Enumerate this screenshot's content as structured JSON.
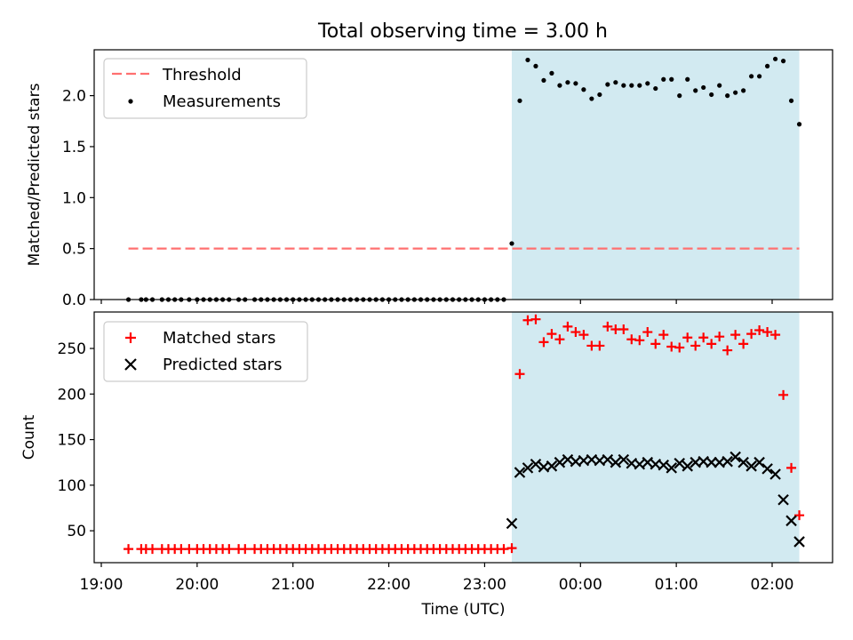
{
  "title": "Total observing time = 3.00 h",
  "chart_data": [
    {
      "type": "scatter",
      "panel": "top",
      "ylabel": "Matched/Predicted stars",
      "ylim": [
        0,
        2.45
      ],
      "yticks": [
        "0.0",
        "0.5",
        "1.0",
        "1.5",
        "2.0"
      ],
      "legend_position": "top-left",
      "threshold": {
        "name": "Threshold",
        "value": 0.5,
        "color": "#ff7070"
      },
      "shaded_interval": {
        "start": "23:17",
        "end": "02:17",
        "color": "#add8e6"
      },
      "series": [
        {
          "name": "Measurements",
          "color": "#000000",
          "x": [
            "19:17",
            "19:25",
            "19:28",
            "19:32",
            "19:38",
            "19:42",
            "19:46",
            "19:50",
            "19:55",
            "20:00",
            "20:04",
            "20:08",
            "20:12",
            "20:16",
            "20:20",
            "20:26",
            "20:30",
            "20:36",
            "20:40",
            "20:44",
            "20:48",
            "20:52",
            "20:56",
            "21:00",
            "21:04",
            "21:08",
            "21:12",
            "21:16",
            "21:20",
            "21:24",
            "21:28",
            "21:32",
            "21:36",
            "21:40",
            "21:44",
            "21:48",
            "21:52",
            "21:56",
            "22:00",
            "22:04",
            "22:08",
            "22:12",
            "22:16",
            "22:20",
            "22:24",
            "22:28",
            "22:32",
            "22:36",
            "22:40",
            "22:44",
            "22:48",
            "22:52",
            "22:56",
            "23:00",
            "23:04",
            "23:08",
            "23:12",
            "23:17",
            "23:22",
            "23:27",
            "23:32",
            "23:37",
            "23:42",
            "23:47",
            "23:52",
            "23:57",
            "00:02",
            "00:07",
            "00:12",
            "00:17",
            "00:22",
            "00:27",
            "00:32",
            "00:37",
            "00:42",
            "00:47",
            "00:52",
            "00:57",
            "01:02",
            "01:07",
            "01:12",
            "01:17",
            "01:22",
            "01:27",
            "01:32",
            "01:37",
            "01:42",
            "01:47",
            "01:52",
            "01:57",
            "02:02",
            "02:07",
            "02:12",
            "02:17"
          ],
          "y": [
            0,
            0,
            0,
            0,
            0,
            0,
            0,
            0,
            0,
            0,
            0,
            0,
            0,
            0,
            0,
            0,
            0,
            0,
            0,
            0,
            0,
            0,
            0,
            0,
            0,
            0,
            0,
            0,
            0,
            0,
            0,
            0,
            0,
            0,
            0,
            0,
            0,
            0,
            0,
            0,
            0,
            0,
            0,
            0,
            0,
            0,
            0,
            0,
            0,
            0,
            0,
            0,
            0,
            0,
            0,
            0,
            0,
            0.55,
            1.95,
            2.35,
            2.29,
            2.15,
            2.22,
            2.1,
            2.13,
            2.12,
            2.06,
            1.97,
            2.01,
            2.11,
            2.13,
            2.1,
            2.1,
            2.1,
            2.12,
            2.07,
            2.16,
            2.16,
            2.0,
            2.16,
            2.05,
            2.08,
            2.01,
            2.1,
            2.0,
            2.03,
            2.05,
            2.19,
            2.19,
            2.29,
            2.36,
            2.34,
            1.95,
            1.72
          ]
        }
      ]
    },
    {
      "type": "scatter",
      "panel": "bottom",
      "xlabel": "Time (UTC)",
      "ylabel": "Count",
      "ylim": [
        15,
        290
      ],
      "yticks": [
        "50",
        "100",
        "150",
        "200",
        "250"
      ],
      "xticks": [
        "19:00",
        "20:00",
        "21:00",
        "22:00",
        "23:00",
        "00:00",
        "01:00",
        "02:00"
      ],
      "legend_position": "top-left",
      "shaded_interval": {
        "start": "23:17",
        "end": "02:17",
        "color": "#add8e6"
      },
      "series": [
        {
          "name": "Matched stars",
          "marker": "plus",
          "color": "#ff0000",
          "x": [
            "19:17",
            "19:25",
            "19:28",
            "19:32",
            "19:38",
            "19:42",
            "19:46",
            "19:50",
            "19:55",
            "20:00",
            "20:04",
            "20:08",
            "20:12",
            "20:16",
            "20:20",
            "20:26",
            "20:30",
            "20:36",
            "20:40",
            "20:44",
            "20:48",
            "20:52",
            "20:56",
            "21:00",
            "21:04",
            "21:08",
            "21:12",
            "21:16",
            "21:20",
            "21:24",
            "21:28",
            "21:32",
            "21:36",
            "21:40",
            "21:44",
            "21:48",
            "21:52",
            "21:56",
            "22:00",
            "22:04",
            "22:08",
            "22:12",
            "22:16",
            "22:20",
            "22:24",
            "22:28",
            "22:32",
            "22:36",
            "22:40",
            "22:44",
            "22:48",
            "22:52",
            "22:56",
            "23:00",
            "23:04",
            "23:08",
            "23:12",
            "23:17",
            "23:22",
            "23:27",
            "23:32",
            "23:37",
            "23:42",
            "23:47",
            "23:52",
            "23:57",
            "00:02",
            "00:07",
            "00:12",
            "00:17",
            "00:22",
            "00:27",
            "00:32",
            "00:37",
            "00:42",
            "00:47",
            "00:52",
            "00:57",
            "01:02",
            "01:07",
            "01:12",
            "01:17",
            "01:22",
            "01:27",
            "01:32",
            "01:37",
            "01:42",
            "01:47",
            "01:52",
            "01:57",
            "02:02",
            "02:07",
            "02:12",
            "02:17"
          ],
          "y": [
            30,
            30,
            30,
            30,
            30,
            30,
            30,
            30,
            30,
            30,
            30,
            30,
            30,
            30,
            30,
            30,
            30,
            30,
            30,
            30,
            30,
            30,
            30,
            30,
            30,
            30,
            30,
            30,
            30,
            30,
            30,
            30,
            30,
            30,
            30,
            30,
            30,
            30,
            30,
            30,
            30,
            30,
            30,
            30,
            30,
            30,
            30,
            30,
            30,
            30,
            30,
            30,
            30,
            30,
            30,
            30,
            30,
            31,
            222,
            281,
            282,
            257,
            266,
            260,
            274,
            268,
            265,
            253,
            253,
            274,
            271,
            271,
            260,
            259,
            268,
            255,
            265,
            252,
            251,
            262,
            253,
            262,
            255,
            263,
            248,
            265,
            255,
            266,
            270,
            268,
            265,
            199,
            119,
            67
          ]
        },
        {
          "name": "Predicted stars",
          "marker": "x",
          "color": "#000000",
          "x": [
            "23:17",
            "23:22",
            "23:27",
            "23:32",
            "23:37",
            "23:42",
            "23:47",
            "23:52",
            "23:57",
            "00:02",
            "00:07",
            "00:12",
            "00:17",
            "00:22",
            "00:27",
            "00:32",
            "00:37",
            "00:42",
            "00:47",
            "00:52",
            "00:57",
            "01:02",
            "01:07",
            "01:12",
            "01:17",
            "01:22",
            "01:27",
            "01:32",
            "01:37",
            "01:42",
            "01:47",
            "01:52",
            "01:57",
            "02:02",
            "02:07",
            "02:12",
            "02:17"
          ],
          "y": [
            58,
            114,
            119,
            123,
            120,
            121,
            125,
            128,
            126,
            127,
            128,
            127,
            128,
            125,
            128,
            124,
            123,
            125,
            123,
            122,
            119,
            124,
            121,
            125,
            126,
            125,
            125,
            126,
            131,
            125,
            121,
            125,
            118,
            112,
            84,
            61,
            38
          ]
        }
      ]
    }
  ]
}
